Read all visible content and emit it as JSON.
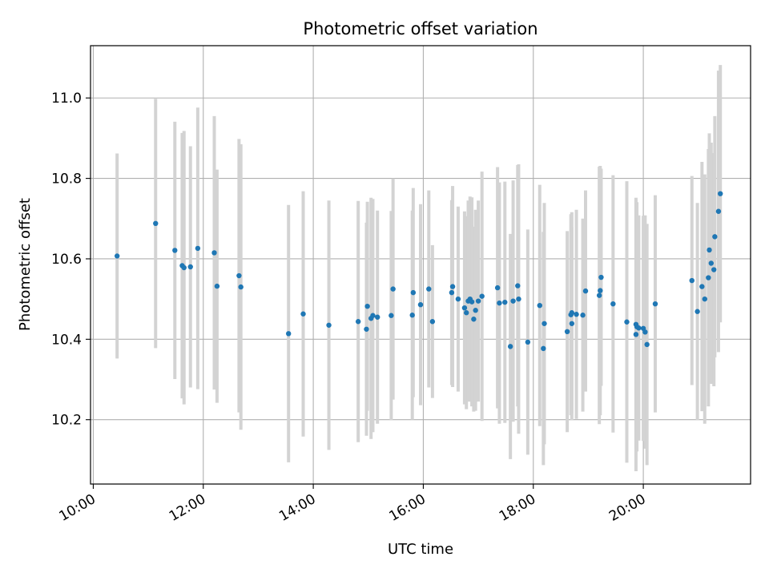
{
  "chart_data": {
    "type": "scatter",
    "title": "Photometric offset variation",
    "xlabel": "UTC time",
    "ylabel": "Photometric offset",
    "xlim": [
      "09:57",
      "21:57"
    ],
    "ylim": [
      10.04,
      11.13
    ],
    "xticks": [
      "10:00",
      "12:00",
      "14:00",
      "16:00",
      "18:00",
      "20:00"
    ],
    "yticks": [
      10.2,
      10.4,
      10.6,
      10.8,
      11.0
    ],
    "grid": true,
    "colors": {
      "point": "#1f77b4",
      "errorbar": "#d3d3d3",
      "grid": "#b0b0b0",
      "axis": "#000000"
    },
    "series": [
      {
        "x": [
          "10:26",
          "11:08",
          "11:29",
          "11:37",
          "11:39",
          "11:46",
          "11:54",
          "12:12",
          "12:15",
          "12:39",
          "12:41",
          "13:33",
          "13:49",
          "14:17",
          "14:49",
          "14:58",
          "14:59",
          "15:03",
          "15:05",
          "15:10",
          "15:25",
          "15:27",
          "15:48",
          "15:49",
          "15:57",
          "16:06",
          "16:10",
          "16:31",
          "16:32",
          "16:38",
          "16:45",
          "16:47",
          "16:49",
          "16:51",
          "16:53",
          "16:55",
          "16:57",
          "17:00",
          "17:04",
          "17:21",
          "17:23",
          "17:29",
          "17:35",
          "17:38",
          "17:43",
          "17:44",
          "17:54",
          "18:07",
          "18:11",
          "18:12",
          "18:37",
          "18:41",
          "18:42",
          "18:42",
          "18:47",
          "18:54",
          "18:57",
          "19:12",
          "19:13",
          "19:14",
          "19:27",
          "19:42",
          "19:52",
          "19:52",
          "19:53",
          "19:55",
          "20:00",
          "20:02",
          "20:04",
          "20:13",
          "20:53",
          "20:59",
          "21:04",
          "21:07",
          "21:11",
          "21:12",
          "21:14",
          "21:17",
          "21:18",
          "21:22",
          "21:24"
        ],
        "y": [
          10.607,
          10.688,
          10.621,
          10.583,
          10.578,
          10.58,
          10.626,
          10.615,
          10.532,
          10.558,
          10.53,
          10.414,
          10.463,
          10.435,
          10.444,
          10.425,
          10.482,
          10.452,
          10.459,
          10.455,
          10.459,
          10.525,
          10.46,
          10.516,
          10.486,
          10.525,
          10.444,
          10.516,
          10.531,
          10.5,
          10.478,
          10.466,
          10.495,
          10.5,
          10.493,
          10.45,
          10.472,
          10.495,
          10.507,
          10.528,
          10.49,
          10.492,
          10.382,
          10.495,
          10.533,
          10.5,
          10.393,
          10.484,
          10.377,
          10.439,
          10.419,
          10.461,
          10.439,
          10.466,
          10.462,
          10.46,
          10.52,
          10.509,
          10.521,
          10.554,
          10.488,
          10.443,
          10.412,
          10.437,
          10.431,
          10.428,
          10.427,
          10.418,
          10.387,
          10.488,
          10.546,
          10.469,
          10.531,
          10.5,
          10.553,
          10.622,
          10.589,
          10.573,
          10.655,
          10.718,
          10.762
        ],
        "err": [
          0.255,
          0.31,
          0.32,
          0.33,
          0.34,
          0.3,
          0.35,
          0.34,
          0.29,
          0.34,
          0.355,
          0.32,
          0.305,
          0.31,
          0.3,
          0.265,
          0.26,
          0.3,
          0.29,
          0.265,
          0.26,
          0.275,
          0.26,
          0.26,
          0.25,
          0.245,
          0.19,
          0.23,
          0.25,
          0.23,
          0.24,
          0.24,
          0.25,
          0.255,
          0.26,
          0.23,
          0.25,
          0.25,
          0.31,
          0.3,
          0.3,
          0.3,
          0.28,
          0.3,
          0.3,
          0.335,
          0.28,
          0.3,
          0.29,
          0.3,
          0.25,
          0.25,
          0.24,
          0.25,
          0.26,
          0.24,
          0.25,
          0.32,
          0.31,
          0.27,
          0.32,
          0.35,
          0.34,
          0.31,
          0.31,
          0.28,
          0.28,
          0.29,
          0.3,
          0.27,
          0.26,
          0.27,
          0.31,
          0.31,
          0.32,
          0.29,
          0.3,
          0.29,
          0.3,
          0.35,
          0.32
        ]
      }
    ]
  }
}
